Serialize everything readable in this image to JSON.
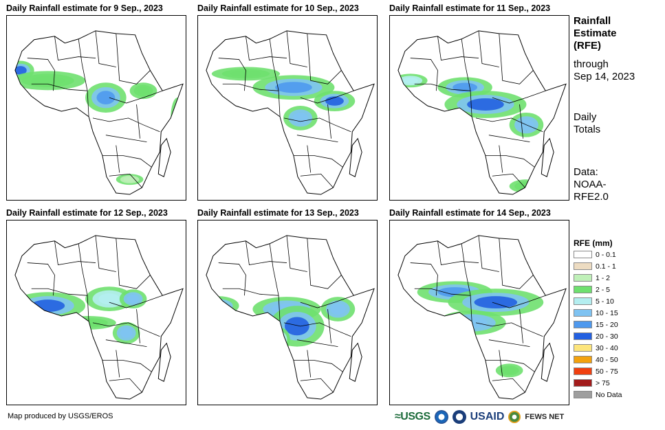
{
  "panels": [
    {
      "title": "Daily Rainfall estimate for 9 Sep., 2023"
    },
    {
      "title": "Daily Rainfall estimate for 10 Sep., 2023"
    },
    {
      "title": "Daily Rainfall estimate for 11 Sep., 2023"
    },
    {
      "title": "Daily Rainfall estimate for 12 Sep., 2023"
    },
    {
      "title": "Daily Rainfall estimate for 13 Sep., 2023"
    },
    {
      "title": "Daily Rainfall estimate for 14 Sep., 2023"
    }
  ],
  "side": {
    "heading1": "Rainfall",
    "heading2": "Estimate",
    "heading3": "(RFE)",
    "through1": "through",
    "through2": "Sep 14, 2023",
    "daily1": "Daily",
    "daily2": "Totals",
    "data1": "Data:",
    "data2": "NOAA-",
    "data3": "RFE2.0"
  },
  "legend": {
    "title": "RFE (mm)",
    "items": [
      {
        "label": "0 - 0.1",
        "color": "#ffffff"
      },
      {
        "label": "0.1 - 1",
        "color": "#eddcc2"
      },
      {
        "label": "1 - 2",
        "color": "#bff0b8"
      },
      {
        "label": "2 - 5",
        "color": "#6fe06f"
      },
      {
        "label": "5 - 10",
        "color": "#b4eef0"
      },
      {
        "label": "10 - 15",
        "color": "#7fc3f2"
      },
      {
        "label": "15 - 20",
        "color": "#4f99ee"
      },
      {
        "label": "20 - 30",
        "color": "#2360e0"
      },
      {
        "label": "30 - 40",
        "color": "#fde57c"
      },
      {
        "label": "40 - 50",
        "color": "#f3a20e"
      },
      {
        "label": "50 - 75",
        "color": "#f04010"
      },
      {
        "label": "> 75",
        "color": "#a31c1c"
      },
      {
        "label": "No Data",
        "color": "#9e9e9e"
      }
    ]
  },
  "credit": "Map produced by USGS/EROS",
  "logos": {
    "usgs": "≈USGS",
    "usaid": "USAID",
    "fews": "FEWS NET"
  }
}
